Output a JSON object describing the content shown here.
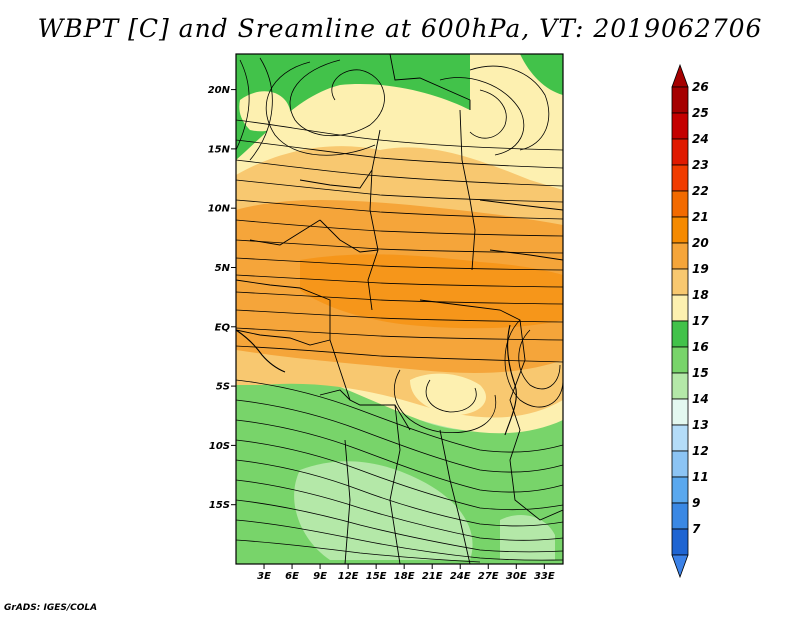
{
  "title": "WBPT [C] and Sreamline at 600hPa, VT: 2019062706",
  "footer": "GrADS: IGES/COLA",
  "map": {
    "lon_range": [
      0,
      35
    ],
    "lat_range": [
      -20,
      23
    ],
    "lon_ticks": [
      {
        "value": 3,
        "label": "3E"
      },
      {
        "value": 6,
        "label": "6E"
      },
      {
        "value": 9,
        "label": "9E"
      },
      {
        "value": 12,
        "label": "12E"
      },
      {
        "value": 15,
        "label": "15E"
      },
      {
        "value": 18,
        "label": "18E"
      },
      {
        "value": 21,
        "label": "21E"
      },
      {
        "value": 24,
        "label": "24E"
      },
      {
        "value": 27,
        "label": "27E"
      },
      {
        "value": 30,
        "label": "30E"
      },
      {
        "value": 33,
        "label": "33E"
      }
    ],
    "lat_ticks": [
      {
        "value": 20,
        "label": "20N"
      },
      {
        "value": 15,
        "label": "15N"
      },
      {
        "value": 10,
        "label": "10N"
      },
      {
        "value": 5,
        "label": "5N"
      },
      {
        "value": 0,
        "label": "EQ"
      },
      {
        "value": -5,
        "label": "5S"
      },
      {
        "value": -10,
        "label": "10S"
      },
      {
        "value": -15,
        "label": "15S"
      }
    ]
  },
  "colorbar": {
    "levels": [
      {
        "label": "26",
        "color": "#a50000"
      },
      {
        "label": "25",
        "color": "#c40000"
      },
      {
        "label": "24",
        "color": "#e01a00"
      },
      {
        "label": "23",
        "color": "#f03c00"
      },
      {
        "label": "22",
        "color": "#f26a00"
      },
      {
        "label": "21",
        "color": "#f58a00"
      },
      {
        "label": "20",
        "color": "#f5a53a"
      },
      {
        "label": "19",
        "color": "#f8c870"
      },
      {
        "label": "18",
        "color": "#fdf0b0"
      },
      {
        "label": "17",
        "color": "#42c24a"
      },
      {
        "label": "16",
        "color": "#78d46a"
      },
      {
        "label": "15",
        "color": "#b4e8a8"
      },
      {
        "label": "14",
        "color": "#e4f8f0"
      },
      {
        "label": "13",
        "color": "#b4dcf8"
      },
      {
        "label": "12",
        "color": "#8cc4f4"
      },
      {
        "label": "11",
        "color": "#5aa8ee"
      },
      {
        "label": "9",
        "color": "#3a88e4"
      },
      {
        "label": "7",
        "color": "#1e64d2"
      }
    ],
    "bottom_color": "#3c82e8"
  },
  "field_colors": {
    "light_green": "#b4e8a8",
    "mid_green": "#78d46a",
    "dark_green": "#42c24a",
    "pale_yellow": "#fdf0b0",
    "light_orange": "#f8c870",
    "orange": "#f5a53a",
    "dark_orange": "#f58a00"
  }
}
